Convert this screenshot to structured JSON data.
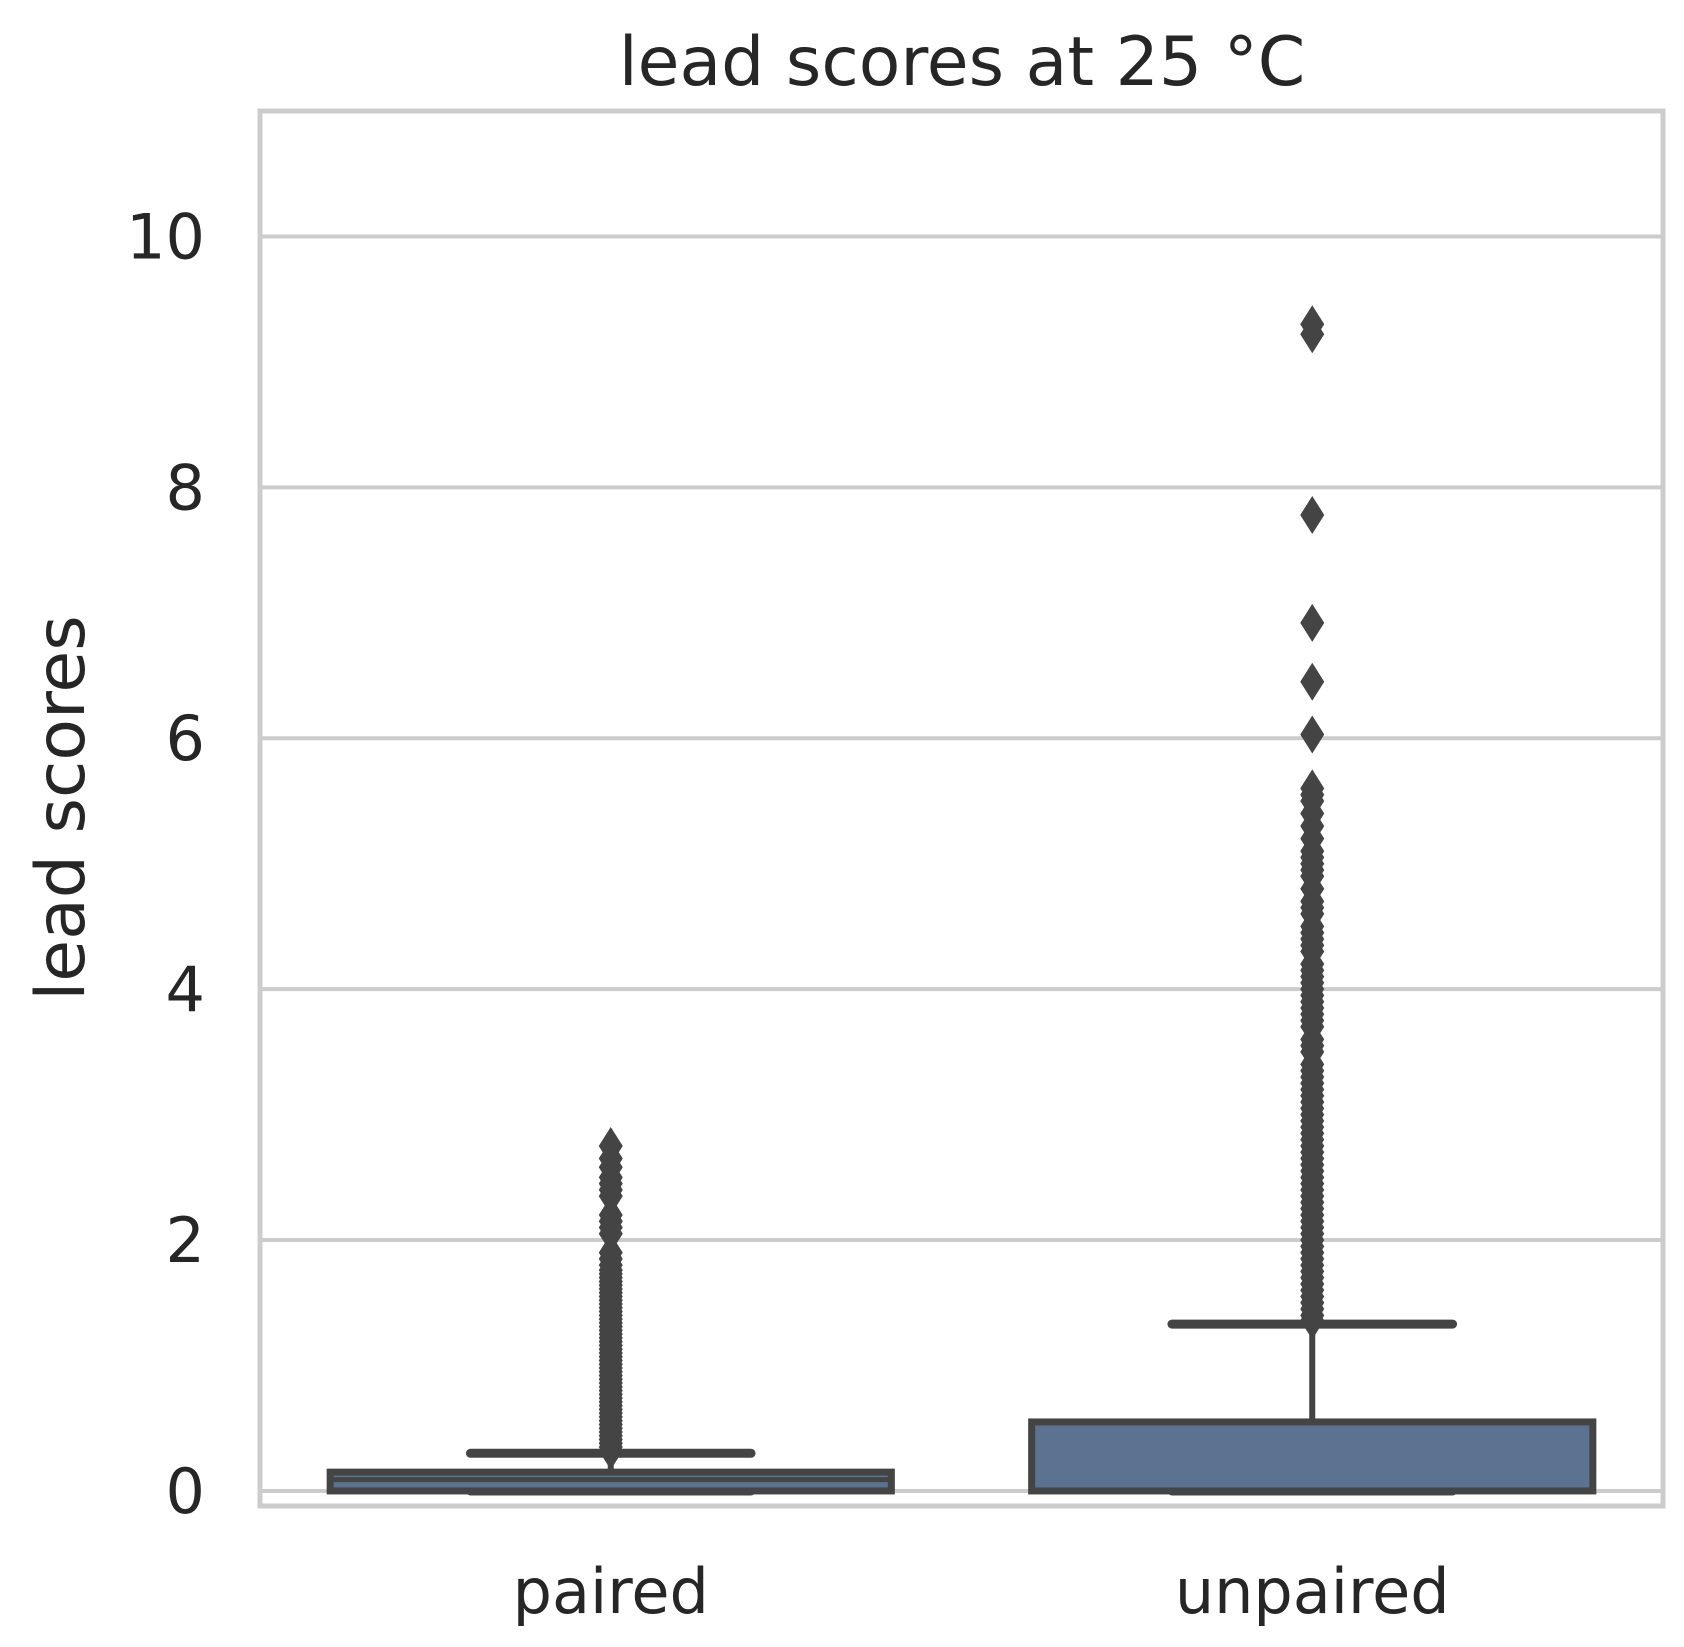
{
  "chart_data": {
    "type": "box",
    "title": "lead scores at 25 °C",
    "xlabel": "",
    "ylabel": "lead scores",
    "ylim": [
      -0.12,
      11
    ],
    "yticks": [
      0,
      2,
      4,
      6,
      8,
      10
    ],
    "grid": true,
    "categories": [
      "paired",
      "unpaired"
    ],
    "boxes": [
      {
        "category": "paired",
        "whisker_low": 0.0,
        "q1": 0.0,
        "median": 0.09,
        "q3": 0.15,
        "whisker_high": 0.3,
        "outliers": [
          0.32,
          0.35,
          0.38,
          0.41,
          0.44,
          0.47,
          0.5,
          0.53,
          0.56,
          0.59,
          0.62,
          0.65,
          0.68,
          0.71,
          0.74,
          0.77,
          0.8,
          0.83,
          0.86,
          0.89,
          0.92,
          0.95,
          0.98,
          1.01,
          1.04,
          1.07,
          1.1,
          1.13,
          1.16,
          1.19,
          1.22,
          1.25,
          1.28,
          1.31,
          1.34,
          1.37,
          1.4,
          1.43,
          1.46,
          1.49,
          1.52,
          1.55,
          1.58,
          1.61,
          1.64,
          1.67,
          1.7,
          1.73,
          1.76,
          1.8,
          1.85,
          1.9,
          2.05,
          2.1,
          2.15,
          2.2,
          2.35,
          2.4,
          2.45,
          2.5,
          2.58,
          2.65,
          2.75
        ]
      },
      {
        "category": "unpaired",
        "whisker_low": 0.0,
        "q1": 0.0,
        "median": 0.0,
        "q3": 0.55,
        "whisker_high": 1.33,
        "outliers": [
          1.36,
          1.4,
          1.45,
          1.5,
          1.55,
          1.6,
          1.65,
          1.7,
          1.75,
          1.8,
          1.85,
          1.9,
          1.95,
          2.0,
          2.05,
          2.1,
          2.15,
          2.2,
          2.25,
          2.3,
          2.35,
          2.4,
          2.45,
          2.5,
          2.55,
          2.6,
          2.65,
          2.7,
          2.75,
          2.8,
          2.85,
          2.9,
          2.95,
          3.0,
          3.05,
          3.1,
          3.15,
          3.2,
          3.25,
          3.3,
          3.35,
          3.4,
          3.5,
          3.55,
          3.6,
          3.7,
          3.75,
          3.8,
          3.85,
          3.9,
          3.95,
          4.0,
          4.05,
          4.1,
          4.15,
          4.2,
          4.3,
          4.35,
          4.4,
          4.45,
          4.5,
          4.6,
          4.65,
          4.7,
          4.8,
          4.9,
          4.95,
          5.0,
          5.05,
          5.1,
          5.2,
          5.3,
          5.4,
          5.5,
          5.55,
          5.6,
          6.03,
          6.45,
          6.92,
          7.78,
          9.22,
          9.3
        ]
      }
    ],
    "colors": {
      "box_fill": "#5b7290",
      "box_edge": "#444444",
      "grid": "#cccccc",
      "frame": "#cccccc",
      "text": "#262626"
    }
  }
}
